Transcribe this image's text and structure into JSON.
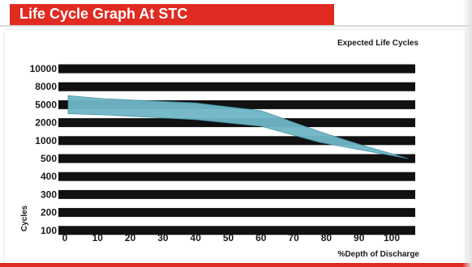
{
  "header": {
    "title": "Life Cycle Graph At STC"
  },
  "colors": {
    "title_bar": "#e12a21",
    "band": "#111111",
    "area": "#6fb6c6",
    "area_edge": "#3f8fa3"
  },
  "chart_data": {
    "type": "area",
    "title": "Expected Life Cycles",
    "xlabel": "%Depth of Discharge",
    "ylabel": "Cycles",
    "x_ticks": [
      0,
      10,
      20,
      30,
      40,
      50,
      60,
      70,
      80,
      90,
      100
    ],
    "y_categories": [
      "100",
      "200",
      "300",
      "400",
      "500",
      "1000",
      "2000",
      "5000",
      "8000",
      "10000"
    ],
    "xlim": [
      0,
      105
    ],
    "grid": false,
    "legend": "none",
    "series": [
      {
        "upper": {
          "x": [
            1,
            12,
            40,
            60,
            78,
            90,
            105
          ],
          "y": [
            6500,
            6000,
            5300,
            4000,
            1500,
            900,
            500
          ]
        },
        "lower": {
          "x": [
            1,
            12,
            40,
            60,
            78,
            90,
            105
          ],
          "y": [
            3500,
            3300,
            2500,
            1800,
            950,
            750,
            500
          ]
        }
      }
    ]
  }
}
